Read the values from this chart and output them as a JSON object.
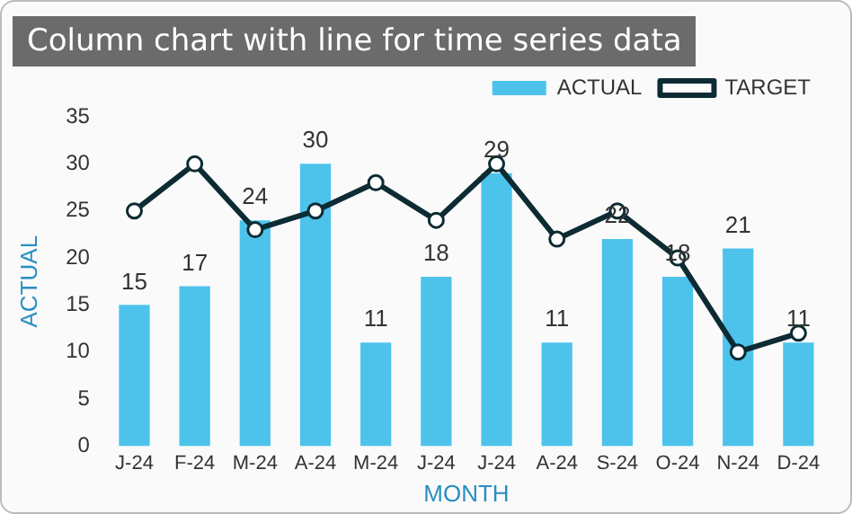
{
  "chart_data": {
    "type": "bar",
    "title": "Column chart with line for time series data",
    "xlabel": "MONTH",
    "ylabel": "ACTUAL",
    "categories": [
      "J-24",
      "F-24",
      "M-24",
      "A-24",
      "M-24",
      "J-24",
      "J-24",
      "A-24",
      "S-24",
      "O-24",
      "N-24",
      "D-24"
    ],
    "series": [
      {
        "name": "ACTUAL",
        "color": "#4dc3ec",
        "values": [
          15,
          17,
          24,
          30,
          11,
          18,
          29,
          11,
          22,
          18,
          21,
          11
        ],
        "value_labels": [
          "15",
          "17",
          "24",
          "30",
          "11",
          "18",
          "29",
          "11",
          "22",
          "18",
          "21",
          "11"
        ]
      },
      {
        "name": "TARGET",
        "type": "line",
        "color": "#0d2b33",
        "marker": "circle",
        "values": [
          25,
          30,
          23,
          25,
          28,
          24,
          30,
          22,
          25,
          20,
          10,
          12
        ]
      }
    ],
    "ylim": [
      0,
      35
    ],
    "yticks": [
      0,
      5,
      10,
      15,
      20,
      25,
      30,
      35
    ],
    "grid": false,
    "legend": "top right"
  }
}
